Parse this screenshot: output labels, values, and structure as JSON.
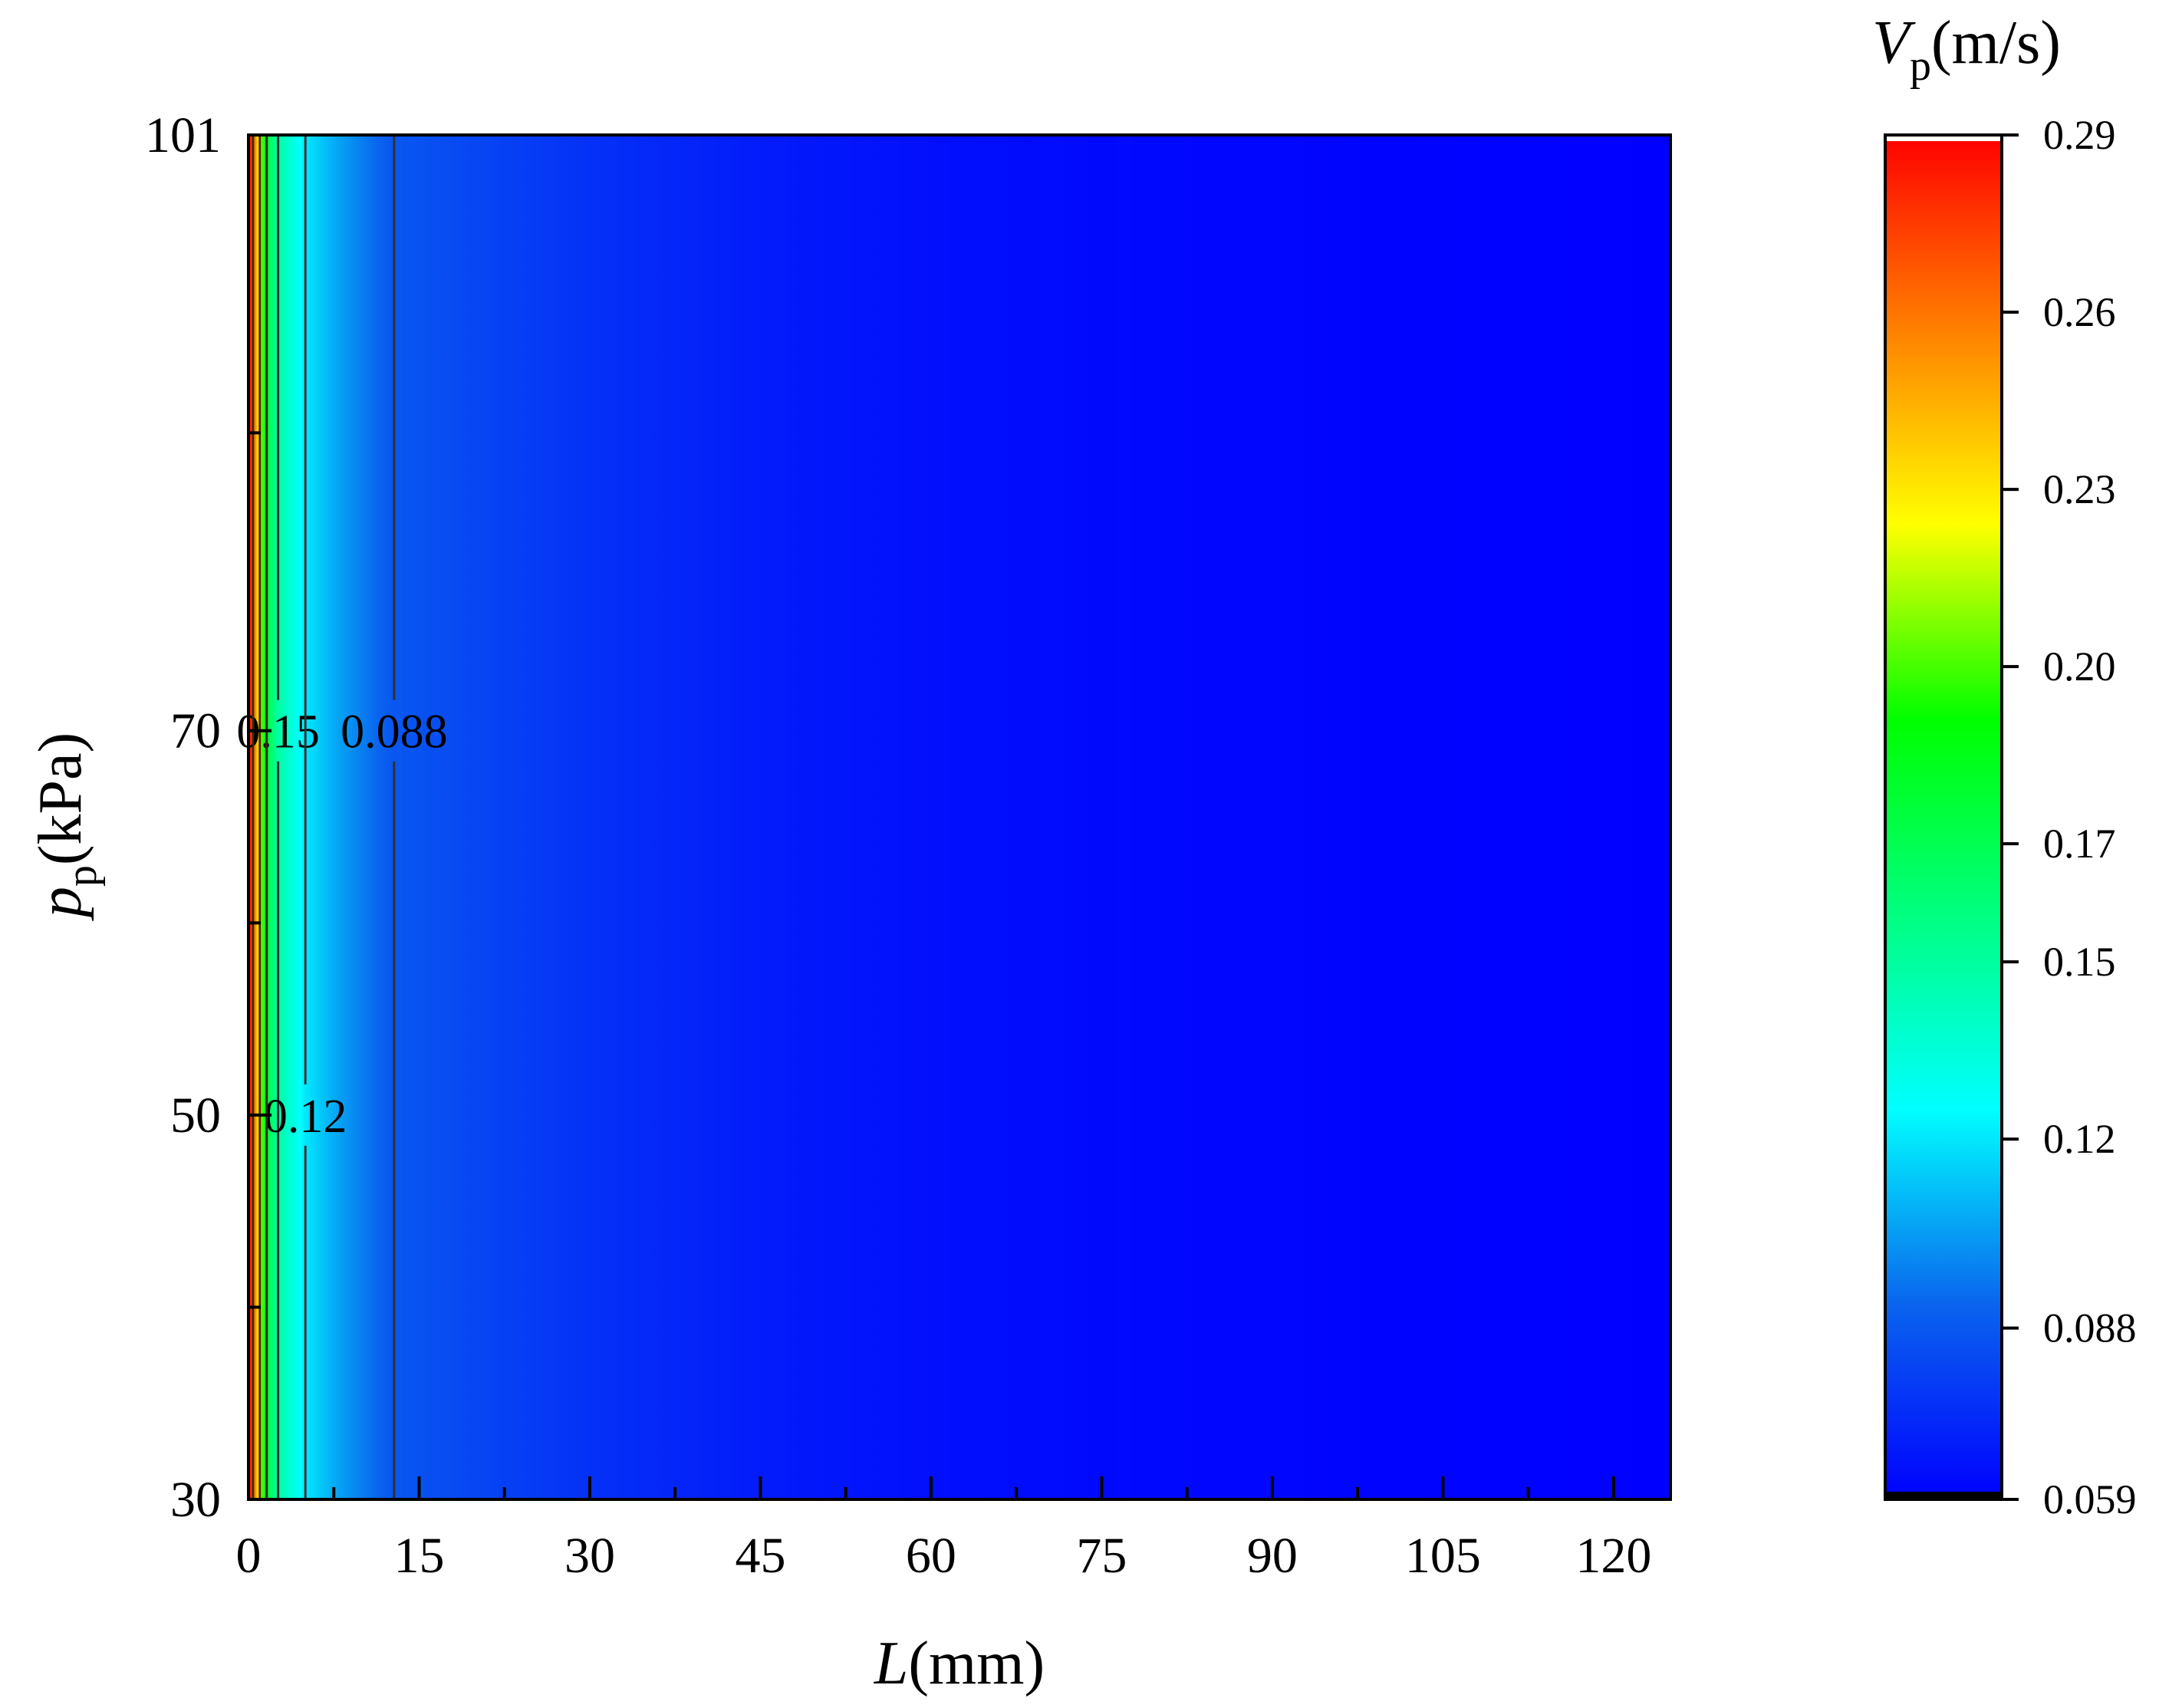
{
  "chart_data": {
    "type": "heatmap",
    "title": "",
    "x_axis": {
      "label_var": "L",
      "label_unit": "(mm)",
      "range": [
        0,
        125
      ],
      "ticks": [
        0,
        15,
        30,
        45,
        60,
        75,
        90,
        105,
        120
      ],
      "tick_labels": [
        "0",
        "15",
        "30",
        "45",
        "60",
        "75",
        "90",
        "105",
        "120"
      ],
      "minor_ticks": [
        7.5,
        22.5,
        37.5,
        52.5,
        67.5,
        82.5,
        97.5,
        112.5
      ]
    },
    "y_axis": {
      "label_var": "p",
      "label_sub": "p",
      "label_unit": "(kPa)",
      "range": [
        30,
        101
      ],
      "ticks": [
        30,
        50,
        70,
        101
      ],
      "tick_labels": [
        "30",
        "50",
        "70",
        "101"
      ],
      "minor_ticks": [
        40,
        60,
        85.5
      ]
    },
    "colorbar": {
      "label_var": "V",
      "label_sub": "p",
      "label_unit": "(m/s)",
      "range": [
        0.059,
        0.29
      ],
      "ticks": [
        0.29,
        0.26,
        0.23,
        0.2,
        0.17,
        0.15,
        0.12,
        0.088,
        0.059
      ],
      "tick_labels": [
        "0.29",
        "0.26",
        "0.23",
        "0.20",
        "0.17",
        "0.15",
        "0.12",
        "0.088",
        "0.059"
      ],
      "colors": [
        "#0000ff",
        "#0a64ee",
        "#00ffff",
        "#00ff80",
        "#00ff00",
        "#ffff00",
        "#ff8000",
        "#ff0000"
      ]
    },
    "field": {
      "description_values_L_to_V": [
        [
          0,
          0.29
        ],
        [
          0.5,
          0.26
        ],
        [
          1,
          0.22
        ],
        [
          1.5,
          0.18
        ],
        [
          2.5,
          0.15
        ],
        [
          5,
          0.12
        ],
        [
          8,
          0.105
        ],
        [
          12.5,
          0.088
        ],
        [
          20,
          0.082
        ],
        [
          30,
          0.075
        ],
        [
          45,
          0.068
        ],
        [
          60,
          0.064
        ],
        [
          75,
          0.062
        ],
        [
          90,
          0.061
        ],
        [
          105,
          0.06
        ],
        [
          125,
          0.059
        ]
      ]
    },
    "contours": [
      {
        "level": 0.15,
        "label": "0.15",
        "L": 2.6,
        "label_p": 70
      },
      {
        "level": 0.12,
        "label": "0.12",
        "L": 5.0,
        "label_p": 50
      },
      {
        "level": 0.088,
        "label": "0.088",
        "L": 12.8,
        "label_p": 70
      }
    ]
  }
}
